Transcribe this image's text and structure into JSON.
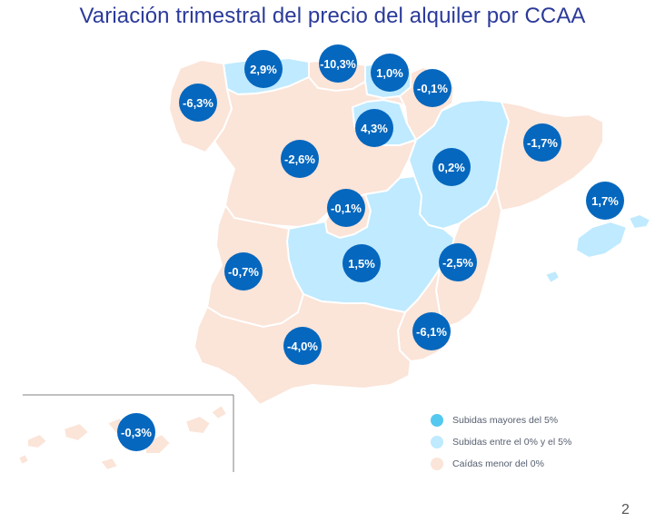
{
  "title": "Variación trimestral del precio del alquiler por CCAA",
  "colors": {
    "fall": "#fbe4d8",
    "rise_0_5": "#bfeaff",
    "rise_over_5": "#55c8ef",
    "marker": "#0567be",
    "marker_text": "#ffffff",
    "title": "#2b3a9a",
    "border": "#ffffff"
  },
  "legend": [
    {
      "label": "Subidas mayores del 5%",
      "color": "#55c8ef"
    },
    {
      "label": "Subidas entre el 0% y el 5%",
      "color": "#bfeaff"
    },
    {
      "label": "Caídas menor del 0%",
      "color": "#fbe4d8"
    }
  ],
  "regions": [
    {
      "id": "galicia",
      "value": "-6,3%",
      "category": "fall"
    },
    {
      "id": "asturias",
      "value": "2,9%",
      "category": "rise_0_5"
    },
    {
      "id": "cantabria",
      "value": "-10,3%",
      "category": "fall"
    },
    {
      "id": "pais-vasco",
      "value": "1,0%",
      "category": "rise_0_5"
    },
    {
      "id": "navarra",
      "value": "-0,1%",
      "category": "fall"
    },
    {
      "id": "la-rioja",
      "value": "4,3%",
      "category": "rise_0_5"
    },
    {
      "id": "aragon",
      "value": "0,2%",
      "category": "rise_0_5"
    },
    {
      "id": "cataluna",
      "value": "-1,7%",
      "category": "fall"
    },
    {
      "id": "castilla-leon",
      "value": "-2,6%",
      "category": "fall"
    },
    {
      "id": "madrid",
      "value": "-0,1%",
      "category": "fall"
    },
    {
      "id": "castilla-la-mancha",
      "value": "1,5%",
      "category": "rise_0_5"
    },
    {
      "id": "comunidad-valenciana",
      "value": "-2,5%",
      "category": "fall"
    },
    {
      "id": "baleares",
      "value": "1,7%",
      "category": "rise_0_5"
    },
    {
      "id": "extremadura",
      "value": "-0,7%",
      "category": "fall"
    },
    {
      "id": "andalucia",
      "value": "-4,0%",
      "category": "fall"
    },
    {
      "id": "murcia",
      "value": "-6,1%",
      "category": "fall"
    },
    {
      "id": "canarias",
      "value": "-0,3%",
      "category": "fall"
    }
  ],
  "page_number": "2"
}
